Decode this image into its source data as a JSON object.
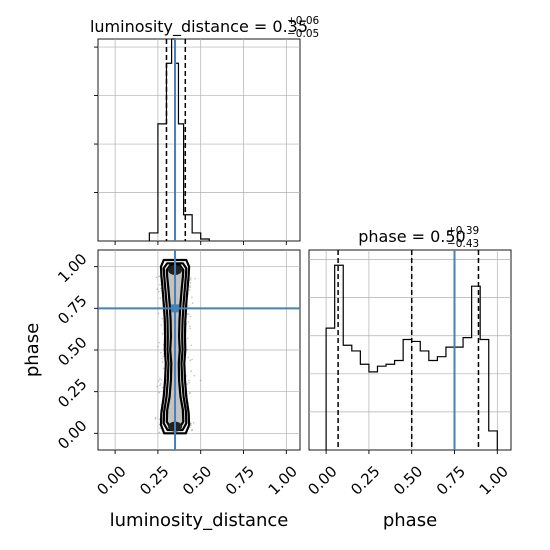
{
  "chart_data": [
    {
      "type": "histogram",
      "panel": "top-left",
      "title": {
        "text": "luminosity_distance = 0.35",
        "upper": "+0.06",
        "lower": "−0.05"
      },
      "x_range": [
        -0.1,
        1.08
      ],
      "bin_edges": [
        0.2,
        0.25,
        0.3,
        0.33,
        0.35,
        0.37,
        0.4,
        0.45,
        0.5,
        0.55
      ],
      "counts": [
        0.04,
        0.58,
        0.88,
        1.0,
        0.88,
        0.58,
        0.13,
        0.04,
        0.01
      ],
      "ylim": [
        0,
        1.0
      ],
      "y_gridlines": [
        0.24,
        0.48,
        0.72,
        0.96
      ],
      "quantile_lines": [
        0.3,
        0.35,
        0.41
      ],
      "truth_value": 0.35,
      "grid": true
    },
    {
      "type": "histogram",
      "panel": "bottom-right",
      "title": {
        "text": "phase = 0.50",
        "upper": "+0.39",
        "lower": "−0.43"
      },
      "x_range": [
        -0.1,
        1.08
      ],
      "xticks": [
        "0.00",
        "0.25",
        "0.50",
        "0.75",
        "1.00"
      ],
      "xlabel": "phase",
      "bin_edges": [
        0.0,
        0.05,
        0.1,
        0.15,
        0.2,
        0.25,
        0.3,
        0.35,
        0.4,
        0.45,
        0.5,
        0.55,
        0.6,
        0.65,
        0.7,
        0.75,
        0.8,
        0.85,
        0.9,
        0.95,
        1.0
      ],
      "counts": [
        0.64,
        0.97,
        0.55,
        0.52,
        0.45,
        0.41,
        0.44,
        0.45,
        0.47,
        0.58,
        0.57,
        0.52,
        0.47,
        0.49,
        0.54,
        0.54,
        0.59,
        0.86,
        0.58,
        0.1
      ],
      "ylim": [
        0,
        1.05
      ],
      "y_gridlines": [
        0.2,
        0.4,
        0.6,
        0.8,
        1.0
      ],
      "quantile_lines": [
        0.07,
        0.5,
        0.89
      ],
      "truth_value": 0.75,
      "grid": true
    },
    {
      "type": "scatter",
      "panel": "bottom-left",
      "x_range": [
        -0.1,
        1.08
      ],
      "y_range": [
        -0.1,
        1.1
      ],
      "xticks": [
        "0.00",
        "0.25",
        "0.50",
        "0.75",
        "1.00"
      ],
      "yticks": [
        "0.00",
        "0.25",
        "0.50",
        "0.75",
        "1.00"
      ],
      "xlabel": "luminosity_distance",
      "ylabel": "phase",
      "truth": {
        "x": 0.35,
        "y": 0.75
      },
      "samples_center_x": 0.35,
      "samples_spread_x": 0.06,
      "samples_y_range": [
        0.0,
        1.0
      ],
      "density_levels": [
        {
          "half_widths": [
            0.063,
            0.082,
            0.08,
            0.066,
            0.058,
            0.054,
            0.06,
            0.058,
            0.06,
            0.066,
            0.074,
            0.08,
            0.082,
            0.066
          ],
          "y": [
            0.0,
            0.05,
            0.12,
            0.22,
            0.32,
            0.42,
            0.5,
            0.58,
            0.68,
            0.78,
            0.88,
            0.95,
            1.0,
            1.04
          ]
        },
        {
          "half_widths": [
            0.044,
            0.066,
            0.064,
            0.05,
            0.042,
            0.038,
            0.044,
            0.042,
            0.044,
            0.05,
            0.058,
            0.064,
            0.066,
            0.046
          ],
          "y": [
            0.02,
            0.06,
            0.13,
            0.22,
            0.32,
            0.42,
            0.5,
            0.58,
            0.68,
            0.78,
            0.88,
            0.95,
            0.99,
            1.02
          ]
        },
        {
          "half_widths": [
            0.025,
            0.048,
            0.046,
            0.032,
            0.024,
            0.022,
            0.028,
            0.024,
            0.026,
            0.032,
            0.04,
            0.046,
            0.048,
            0.027
          ],
          "y": [
            0.03,
            0.07,
            0.14,
            0.22,
            0.32,
            0.42,
            0.5,
            0.58,
            0.68,
            0.78,
            0.88,
            0.94,
            0.98,
            1.01
          ]
        }
      ],
      "grid": true
    }
  ],
  "colors": {
    "truth": "#4682b4",
    "lines": "#000000",
    "grid": "#b0b0b0",
    "points": "#555555"
  }
}
